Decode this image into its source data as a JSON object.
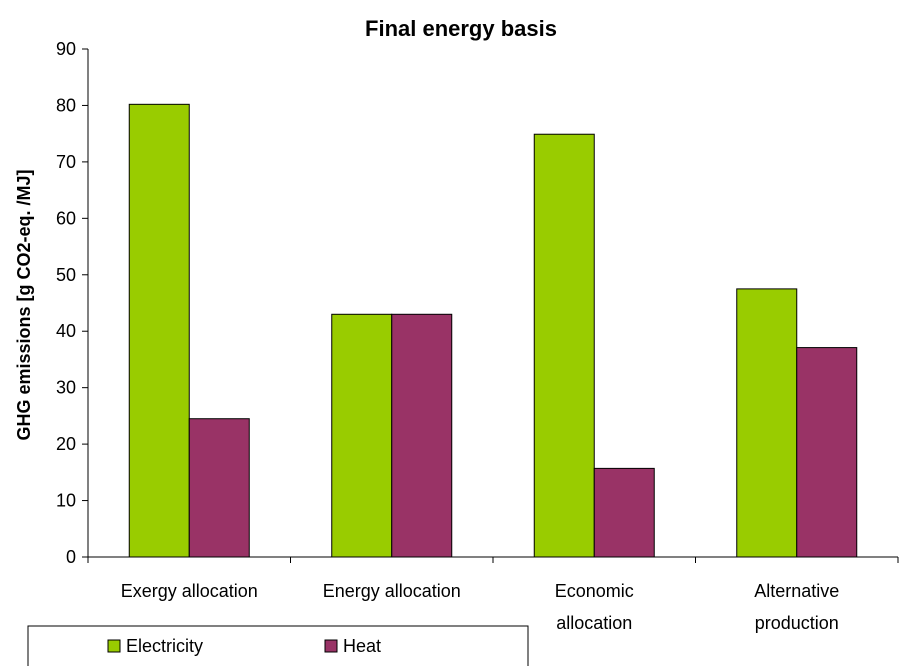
{
  "chart_data": {
    "type": "bar",
    "title": "Final energy basis",
    "xlabel": "",
    "ylabel": "GHG emissions [g CO2-eq. /MJ]",
    "ylim": [
      0,
      90
    ],
    "ytick_step": 10,
    "grid": false,
    "legend_position": "bottom-left",
    "categories": [
      [
        "Exergy allocation"
      ],
      [
        "Energy allocation"
      ],
      [
        "Economic",
        "allocation"
      ],
      [
        "Alternative",
        "production"
      ]
    ],
    "series": [
      {
        "name": "Electricity",
        "color": "#99CC00",
        "values": [
          80.2,
          43.0,
          74.9,
          47.5
        ]
      },
      {
        "name": "Heat",
        "color": "#993366",
        "values": [
          24.5,
          43.0,
          15.7,
          37.1
        ]
      }
    ]
  }
}
